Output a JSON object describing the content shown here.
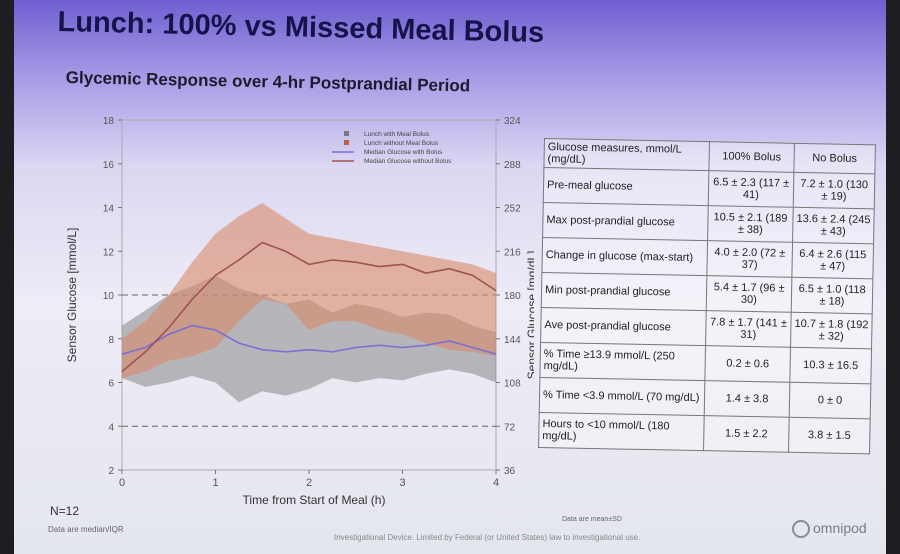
{
  "slide": {
    "title": "Lunch: 100% vs Missed Meal Bolus",
    "subtitle": "Glycemic Response over 4-hr Postprandial Period",
    "n_label": "N=12",
    "chart_note": "Data are median/IQR",
    "table_note": "Data are mean±SD",
    "footer": "Investigational Device. Limited by Federal (or United States) law to investigational use.",
    "logo_text": "omnipod"
  },
  "chart_data": {
    "type": "area",
    "title": "Glycemic Response over 4-hr Postprandial Period",
    "xlabel": "Time from Start of Meal (h)",
    "ylabel": "Sensor Glucose [mmol/L]",
    "y2label": "Sensor Glucose [mg/dL]",
    "xlim": [
      0,
      4
    ],
    "ylim": [
      2,
      18
    ],
    "x_ticks": [
      "0",
      "1",
      "2",
      "3",
      "4"
    ],
    "y_ticks": [
      "2",
      "4",
      "6",
      "8",
      "10",
      "12",
      "14",
      "16",
      "18"
    ],
    "y2_ticks": [
      "36",
      "72",
      "108",
      "144",
      "180",
      "216",
      "252",
      "288",
      "324"
    ],
    "reference_lines": [
      4,
      10
    ],
    "legend": [
      "Lunch with Meal Bolus",
      "Lunch without Meal Bolus",
      "Median Glucose with Bolus",
      "Median Glucose without Bolus"
    ],
    "x": [
      0.0,
      0.25,
      0.5,
      0.75,
      1.0,
      1.25,
      1.5,
      1.75,
      2.0,
      2.25,
      2.5,
      2.75,
      3.0,
      3.25,
      3.5,
      3.75,
      4.0
    ],
    "series": [
      {
        "name": "Median Glucose with Bolus",
        "color": "#7a6fd6",
        "band_color": "#888888",
        "median": [
          7.3,
          7.6,
          8.2,
          8.6,
          8.4,
          7.8,
          7.5,
          7.4,
          7.5,
          7.4,
          7.6,
          7.7,
          7.6,
          7.7,
          7.9,
          7.6,
          7.3
        ],
        "q1": [
          6.2,
          5.8,
          6.0,
          6.3,
          6.0,
          5.1,
          5.6,
          5.4,
          5.7,
          6.2,
          6.0,
          6.2,
          6.1,
          6.4,
          6.6,
          6.4,
          6.0
        ],
        "q3": [
          8.6,
          9.3,
          10.0,
          10.4,
          10.9,
          10.3,
          10.0,
          9.6,
          9.8,
          9.2,
          9.6,
          9.4,
          9.0,
          9.2,
          9.1,
          8.6,
          8.3
        ]
      },
      {
        "name": "Median Glucose without Bolus",
        "color": "#a0524e",
        "band_color": "#d98a6a",
        "median": [
          6.5,
          7.4,
          8.5,
          9.8,
          10.9,
          11.6,
          12.4,
          12.0,
          11.4,
          11.6,
          11.5,
          11.3,
          11.4,
          11.0,
          11.2,
          10.9,
          10.2
        ],
        "q1": [
          6.2,
          6.5,
          7.0,
          7.2,
          7.6,
          8.8,
          9.8,
          9.6,
          8.4,
          8.8,
          8.8,
          8.4,
          8.2,
          7.8,
          7.5,
          7.4,
          7.2
        ],
        "q3": [
          8.0,
          8.8,
          10.0,
          11.5,
          12.8,
          13.6,
          14.2,
          13.5,
          12.8,
          12.6,
          12.4,
          12.2,
          12.0,
          11.8,
          11.6,
          11.4,
          11.0
        ]
      }
    ]
  },
  "table": {
    "headers": [
      "Glucose measures, mmol/L (mg/dL)",
      "100% Bolus",
      "No Bolus"
    ],
    "rows": [
      {
        "label": "Pre-meal glucose",
        "bolus": "6.5 ± 2.3 (117 ± 41)",
        "nobolus": "7.2 ± 1.0 (130 ± 19)"
      },
      {
        "label": "Max post-prandial glucose",
        "bolus": "10.5 ± 2.1 (189 ± 38)",
        "nobolus": "13.6 ± 2.4 (245 ± 43)"
      },
      {
        "label": "Change in glucose (max-start)",
        "bolus": "4.0 ± 2.0 (72 ± 37)",
        "nobolus": "6.4 ± 2.6 (115 ± 47)"
      },
      {
        "label": "Min post-prandial glucose",
        "bolus": "5.4 ± 1.7 (96 ± 30)",
        "nobolus": "6.5 ± 1.0 (118 ± 18)"
      },
      {
        "label": "Ave post-prandial glucose",
        "bolus": "7.8 ± 1.7 (141 ± 31)",
        "nobolus": "10.7 ± 1.8 (192 ± 32)"
      },
      {
        "label": "% Time ≥13.9 mmol/L (250 mg/dL)",
        "bolus": "0.2 ± 0.6",
        "nobolus": "10.3 ± 16.5"
      },
      {
        "label": "% Time <3.9 mmol/L (70 mg/dL)",
        "bolus": "1.4 ± 3.8",
        "nobolus": "0 ± 0"
      },
      {
        "label": "Hours to <10 mmol/L (180 mg/dL)",
        "bolus": "1.5 ± 2.2",
        "nobolus": "3.8 ± 1.5"
      }
    ]
  }
}
